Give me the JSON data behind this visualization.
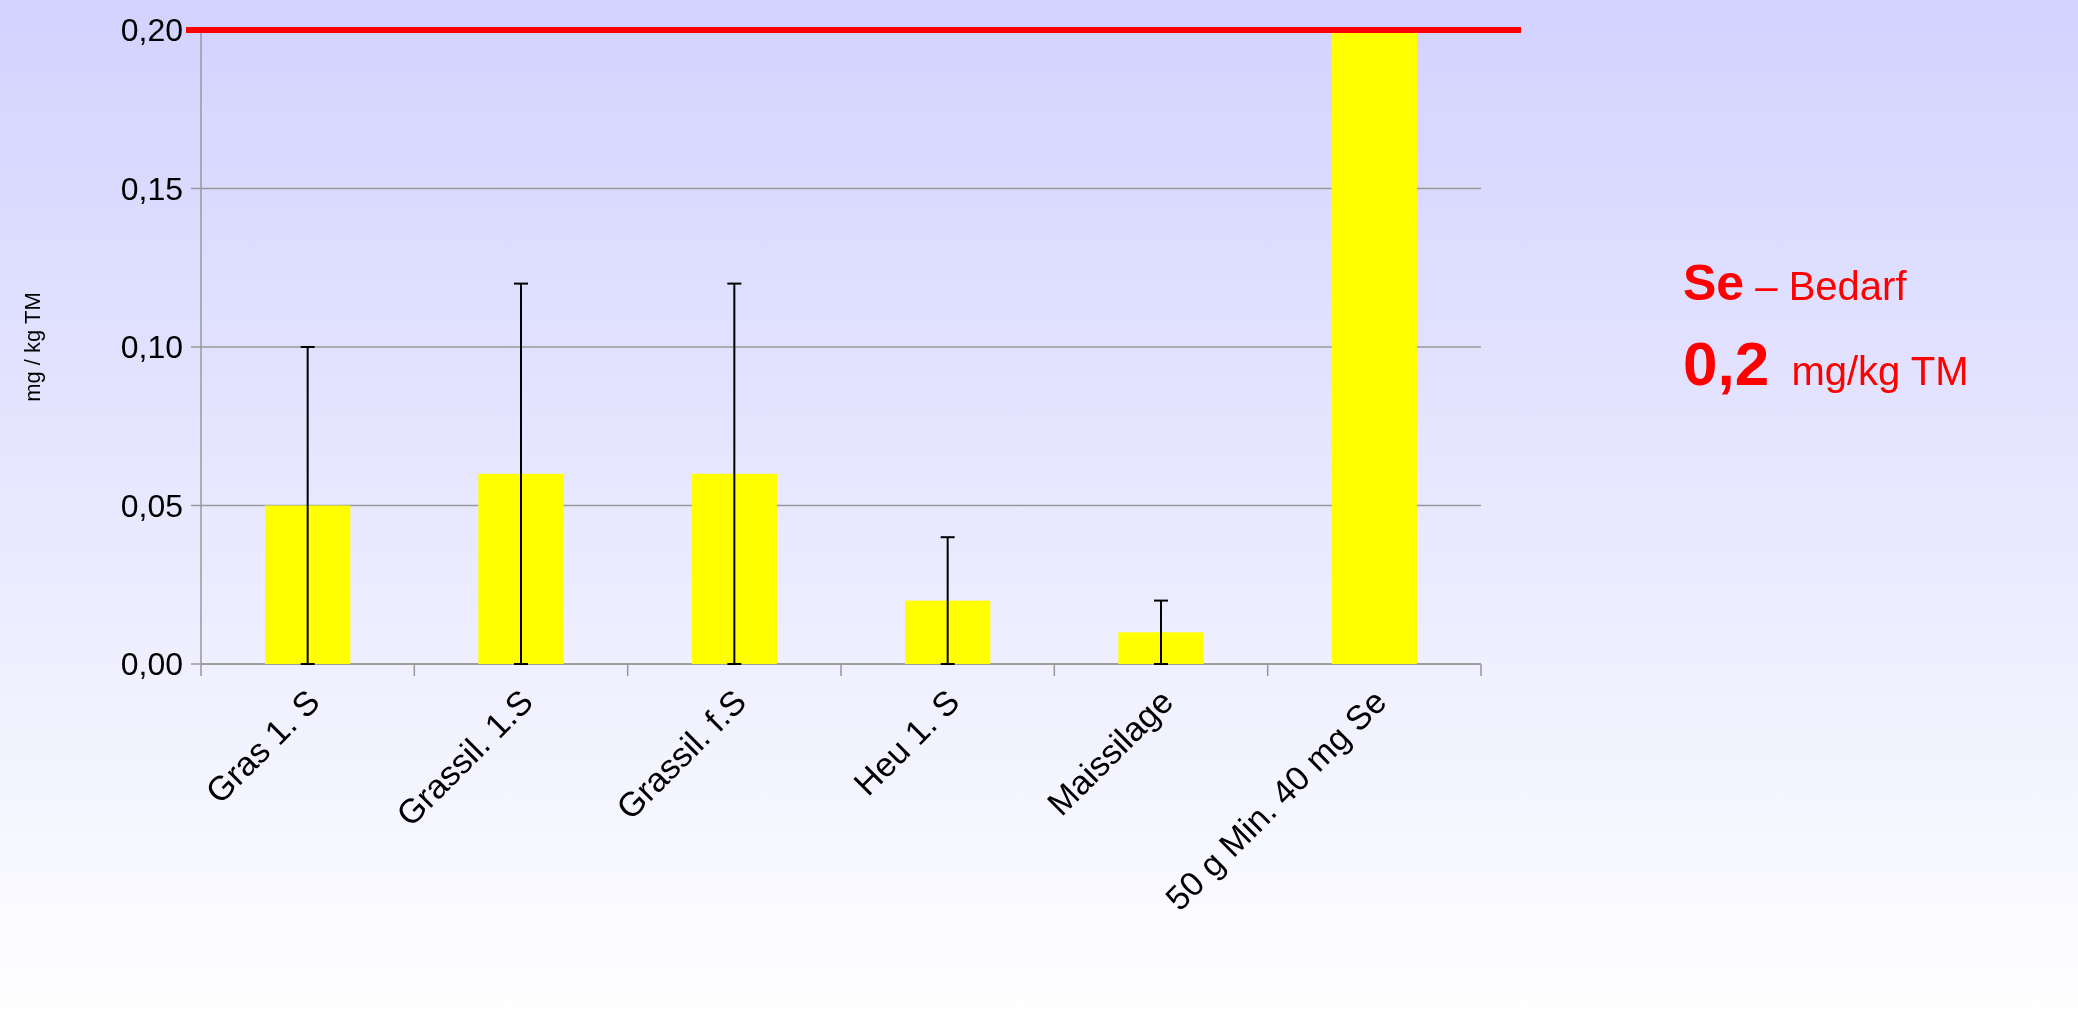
{
  "chart_data": {
    "type": "bar",
    "ylabel": "mg / kg TM",
    "categories": [
      "Gras  1. S",
      "Grassil. 1.S",
      "Grassil. f.S",
      "Heu 1. S",
      "Maissilage",
      "50 g Min. 40 mg Se"
    ],
    "values": [
      0.05,
      0.06,
      0.06,
      0.02,
      0.01,
      0.2
    ],
    "errors": [
      0.05,
      0.06,
      0.06,
      0.02,
      0.01,
      null
    ],
    "color": "#ffff00",
    "ylim": [
      0,
      0.2
    ],
    "yticks": [
      {
        "value": 0,
        "label": "0,00"
      },
      {
        "value": 0.05,
        "label": "0,05"
      },
      {
        "value": 0.1,
        "label": "0,10"
      },
      {
        "value": 0.15,
        "label": "0,15"
      },
      {
        "value": 0.2,
        "label": "0,20"
      }
    ],
    "grid": "y",
    "ref_lines": [
      {
        "axis": "y",
        "value": 0.2,
        "label": null,
        "color": "#ff0000"
      }
    ],
    "annotations": [
      "Se – Bedarf",
      "0,2  mg/kg TM"
    ]
  }
}
